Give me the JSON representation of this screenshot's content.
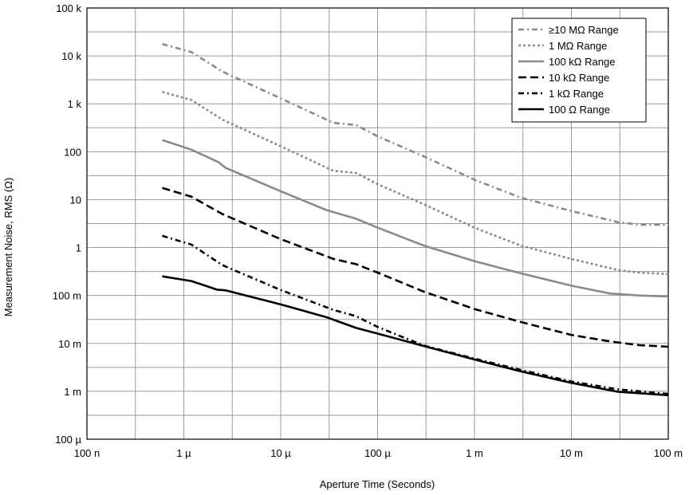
{
  "chart_data": {
    "type": "line",
    "title": "",
    "xlabel": "Aperture Time (Seconds)",
    "ylabel": "Measurement Noise, RMS (Ω)",
    "xscale": "log",
    "yscale": "log",
    "xlim": [
      1e-07,
      0.1
    ],
    "ylim": [
      0.0001,
      100000
    ],
    "grid": true,
    "legend_position": "top-right",
    "x_ticks": [
      {
        "value": 1e-07,
        "label": "100 n"
      },
      {
        "value": 1e-06,
        "label": "1 µ"
      },
      {
        "value": 1e-05,
        "label": "10 µ"
      },
      {
        "value": 0.0001,
        "label": "100 µ"
      },
      {
        "value": 0.001,
        "label": "1 m"
      },
      {
        "value": 0.01,
        "label": "10 m"
      },
      {
        "value": 0.1,
        "label": "100 m"
      }
    ],
    "y_ticks": [
      {
        "value": 0.0001,
        "label": "100 µ"
      },
      {
        "value": 0.001,
        "label": "1 m"
      },
      {
        "value": 0.01,
        "label": "10 m"
      },
      {
        "value": 0.1,
        "label": "100 m"
      },
      {
        "value": 1,
        "label": "1"
      },
      {
        "value": 10,
        "label": "10"
      },
      {
        "value": 100,
        "label": "100"
      },
      {
        "value": 1000,
        "label": "1 k"
      },
      {
        "value": 10000,
        "label": "10 k"
      },
      {
        "value": 100000,
        "label": "100 k"
      }
    ],
    "series": [
      {
        "name": "≥10 MΩ Range",
        "color": "#8a8a8a",
        "style": "dash-dot",
        "points": [
          [
            6e-07,
            17700
          ],
          [
            1.2e-06,
            12000
          ],
          [
            2.5e-06,
            4700
          ],
          [
            1e-05,
            1300
          ],
          [
            3.5e-05,
            400
          ],
          [
            6e-05,
            360
          ],
          [
            0.0001,
            210
          ],
          [
            0.0003,
            80
          ],
          [
            0.001,
            26
          ],
          [
            0.003,
            11
          ],
          [
            0.01,
            5.8
          ],
          [
            0.03,
            3.4
          ],
          [
            0.05,
            3.0
          ],
          [
            0.1,
            3.0
          ]
        ]
      },
      {
        "name": "1 MΩ Range",
        "color": "#8a8a8a",
        "style": "dotted",
        "points": [
          [
            6e-07,
            1770
          ],
          [
            1.2e-06,
            1200
          ],
          [
            2.5e-06,
            470
          ],
          [
            1e-05,
            130
          ],
          [
            3.5e-05,
            40
          ],
          [
            6e-05,
            36
          ],
          [
            0.0001,
            21
          ],
          [
            0.0003,
            8
          ],
          [
            0.001,
            2.6
          ],
          [
            0.003,
            1.1
          ],
          [
            0.01,
            0.58
          ],
          [
            0.03,
            0.34
          ],
          [
            0.05,
            0.3
          ],
          [
            0.1,
            0.28
          ]
        ]
      },
      {
        "name": "100 kΩ Range",
        "color": "#8a8a8a",
        "style": "solid",
        "points": [
          [
            6e-07,
            175
          ],
          [
            1.2e-06,
            110
          ],
          [
            2.3e-06,
            60
          ],
          [
            2.7e-06,
            46
          ],
          [
            1e-05,
            15
          ],
          [
            3e-05,
            6
          ],
          [
            6e-05,
            4
          ],
          [
            0.0001,
            2.6
          ],
          [
            0.0003,
            1.1
          ],
          [
            0.001,
            0.52
          ],
          [
            0.003,
            0.29
          ],
          [
            0.01,
            0.16
          ],
          [
            0.025,
            0.11
          ],
          [
            0.05,
            0.1
          ],
          [
            0.1,
            0.095
          ]
        ]
      },
      {
        "name": "10 kΩ Range",
        "color": "#000000",
        "style": "dashed",
        "points": [
          [
            6e-07,
            17.5
          ],
          [
            1.2e-06,
            11.5
          ],
          [
            2.5e-06,
            5
          ],
          [
            1e-05,
            1.5
          ],
          [
            3.5e-05,
            0.58
          ],
          [
            6e-05,
            0.45
          ],
          [
            0.0001,
            0.3
          ],
          [
            0.0003,
            0.12
          ],
          [
            0.001,
            0.052
          ],
          [
            0.003,
            0.028
          ],
          [
            0.01,
            0.015
          ],
          [
            0.025,
            0.011
          ],
          [
            0.05,
            0.0092
          ],
          [
            0.1,
            0.0085
          ]
        ]
      },
      {
        "name": "1 kΩ Range",
        "color": "#000000",
        "style": "dash-dot",
        "points": [
          [
            6e-07,
            1.75
          ],
          [
            1.2e-06,
            1.15
          ],
          [
            2.5e-06,
            0.43
          ],
          [
            1e-05,
            0.13
          ],
          [
            3.5e-05,
            0.05
          ],
          [
            6e-05,
            0.037
          ],
          [
            0.0001,
            0.022
          ],
          [
            0.0003,
            0.009
          ],
          [
            0.001,
            0.0048
          ],
          [
            0.003,
            0.0028
          ],
          [
            0.01,
            0.0016
          ],
          [
            0.03,
            0.0011
          ],
          [
            0.1,
            0.00088
          ]
        ]
      },
      {
        "name": "100 Ω Range",
        "color": "#000000",
        "style": "solid",
        "points": [
          [
            6e-07,
            0.25
          ],
          [
            1.2e-06,
            0.2
          ],
          [
            2.2e-06,
            0.132
          ],
          [
            2.7e-06,
            0.128
          ],
          [
            1e-05,
            0.065
          ],
          [
            3e-05,
            0.035
          ],
          [
            6e-05,
            0.021
          ],
          [
            0.0001,
            0.016
          ],
          [
            0.0003,
            0.0088
          ],
          [
            0.001,
            0.0046
          ],
          [
            0.003,
            0.0026
          ],
          [
            0.01,
            0.0015
          ],
          [
            0.03,
            0.00098
          ],
          [
            0.1,
            0.00083
          ]
        ]
      }
    ]
  }
}
